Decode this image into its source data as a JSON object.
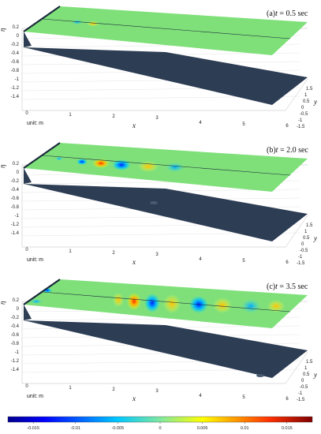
{
  "figure": {
    "unit_label": "unit: m",
    "z_axis_label": "η",
    "x_axis_label": "x",
    "y_axis_label": "y",
    "x_ticks": [
      "0",
      "1",
      "2",
      "3",
      "4",
      "5",
      "6"
    ],
    "y_ticks": [
      "-1.5",
      "-1",
      "-0.5",
      "0",
      "0.5",
      "1",
      "1.5"
    ],
    "z_ticks": [
      "0.2",
      "0",
      "-0.2",
      "-0.4",
      "-0.6",
      "-0.8",
      "-1",
      "-1.2",
      "-1.4"
    ],
    "panels": [
      {
        "label_prefix": "(a)",
        "t_symbol": "t",
        "t_value": " = 0.5 sec"
      },
      {
        "label_prefix": "(b)",
        "t_symbol": "t",
        "t_value": " = 2.0 sec"
      },
      {
        "label_prefix": "(c)",
        "t_symbol": "t",
        "t_value": " = 3.5 sec"
      }
    ],
    "colorbar": {
      "ticks": [
        "-0.015",
        "-0.01",
        "-0.005",
        "0",
        "0.005",
        "0.01",
        "0.015"
      ],
      "range": [
        -0.018,
        0.018
      ],
      "colors": [
        "#00008f",
        "#0000ff",
        "#00a0ff",
        "#7fe8a0",
        "#ffff00",
        "#ff7f00",
        "#ff0000",
        "#7f0000"
      ]
    },
    "colors": {
      "surface": "#7fe07a",
      "bottom": "#2d3d54",
      "crest": "#e88a1a",
      "trough": "#2a6cff"
    }
  }
}
